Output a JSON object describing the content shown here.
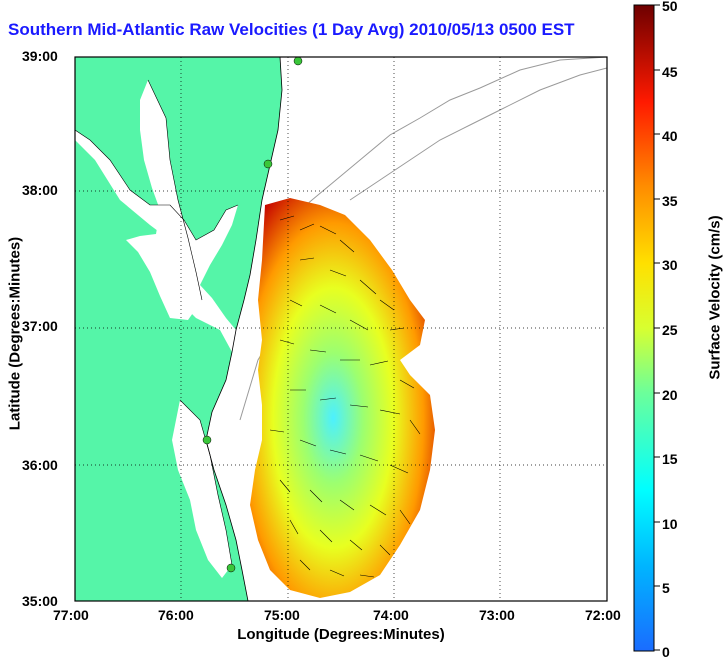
{
  "title": "Southern Mid-Atlantic Raw Velocities (1 Day Avg) 2010/05/13 0500 EST",
  "x_axis": {
    "label": "Longitude (Degrees:Minutes)",
    "ticks": [
      "77:00",
      "76:00",
      "75:00",
      "74:00",
      "73:00",
      "72:00"
    ]
  },
  "y_axis": {
    "label": "Latitude (Degrees:Minutes)",
    "ticks": [
      "39:00",
      "38:00",
      "37:00",
      "36:00",
      "35:00"
    ]
  },
  "colorbar": {
    "label": "Surface Velocity (cm/s)",
    "ticks": [
      "50",
      "45",
      "40",
      "35",
      "30",
      "25",
      "20",
      "15",
      "10",
      "5",
      "0"
    ],
    "range": [
      0,
      50
    ]
  },
  "colors": {
    "land": "#55f5a8",
    "title_blue": "#1a1aff",
    "station": "#3ac63a"
  },
  "map_extent": {
    "lon": [
      -77,
      -72
    ],
    "lat": [
      35,
      39
    ]
  },
  "grid": "dotted"
}
